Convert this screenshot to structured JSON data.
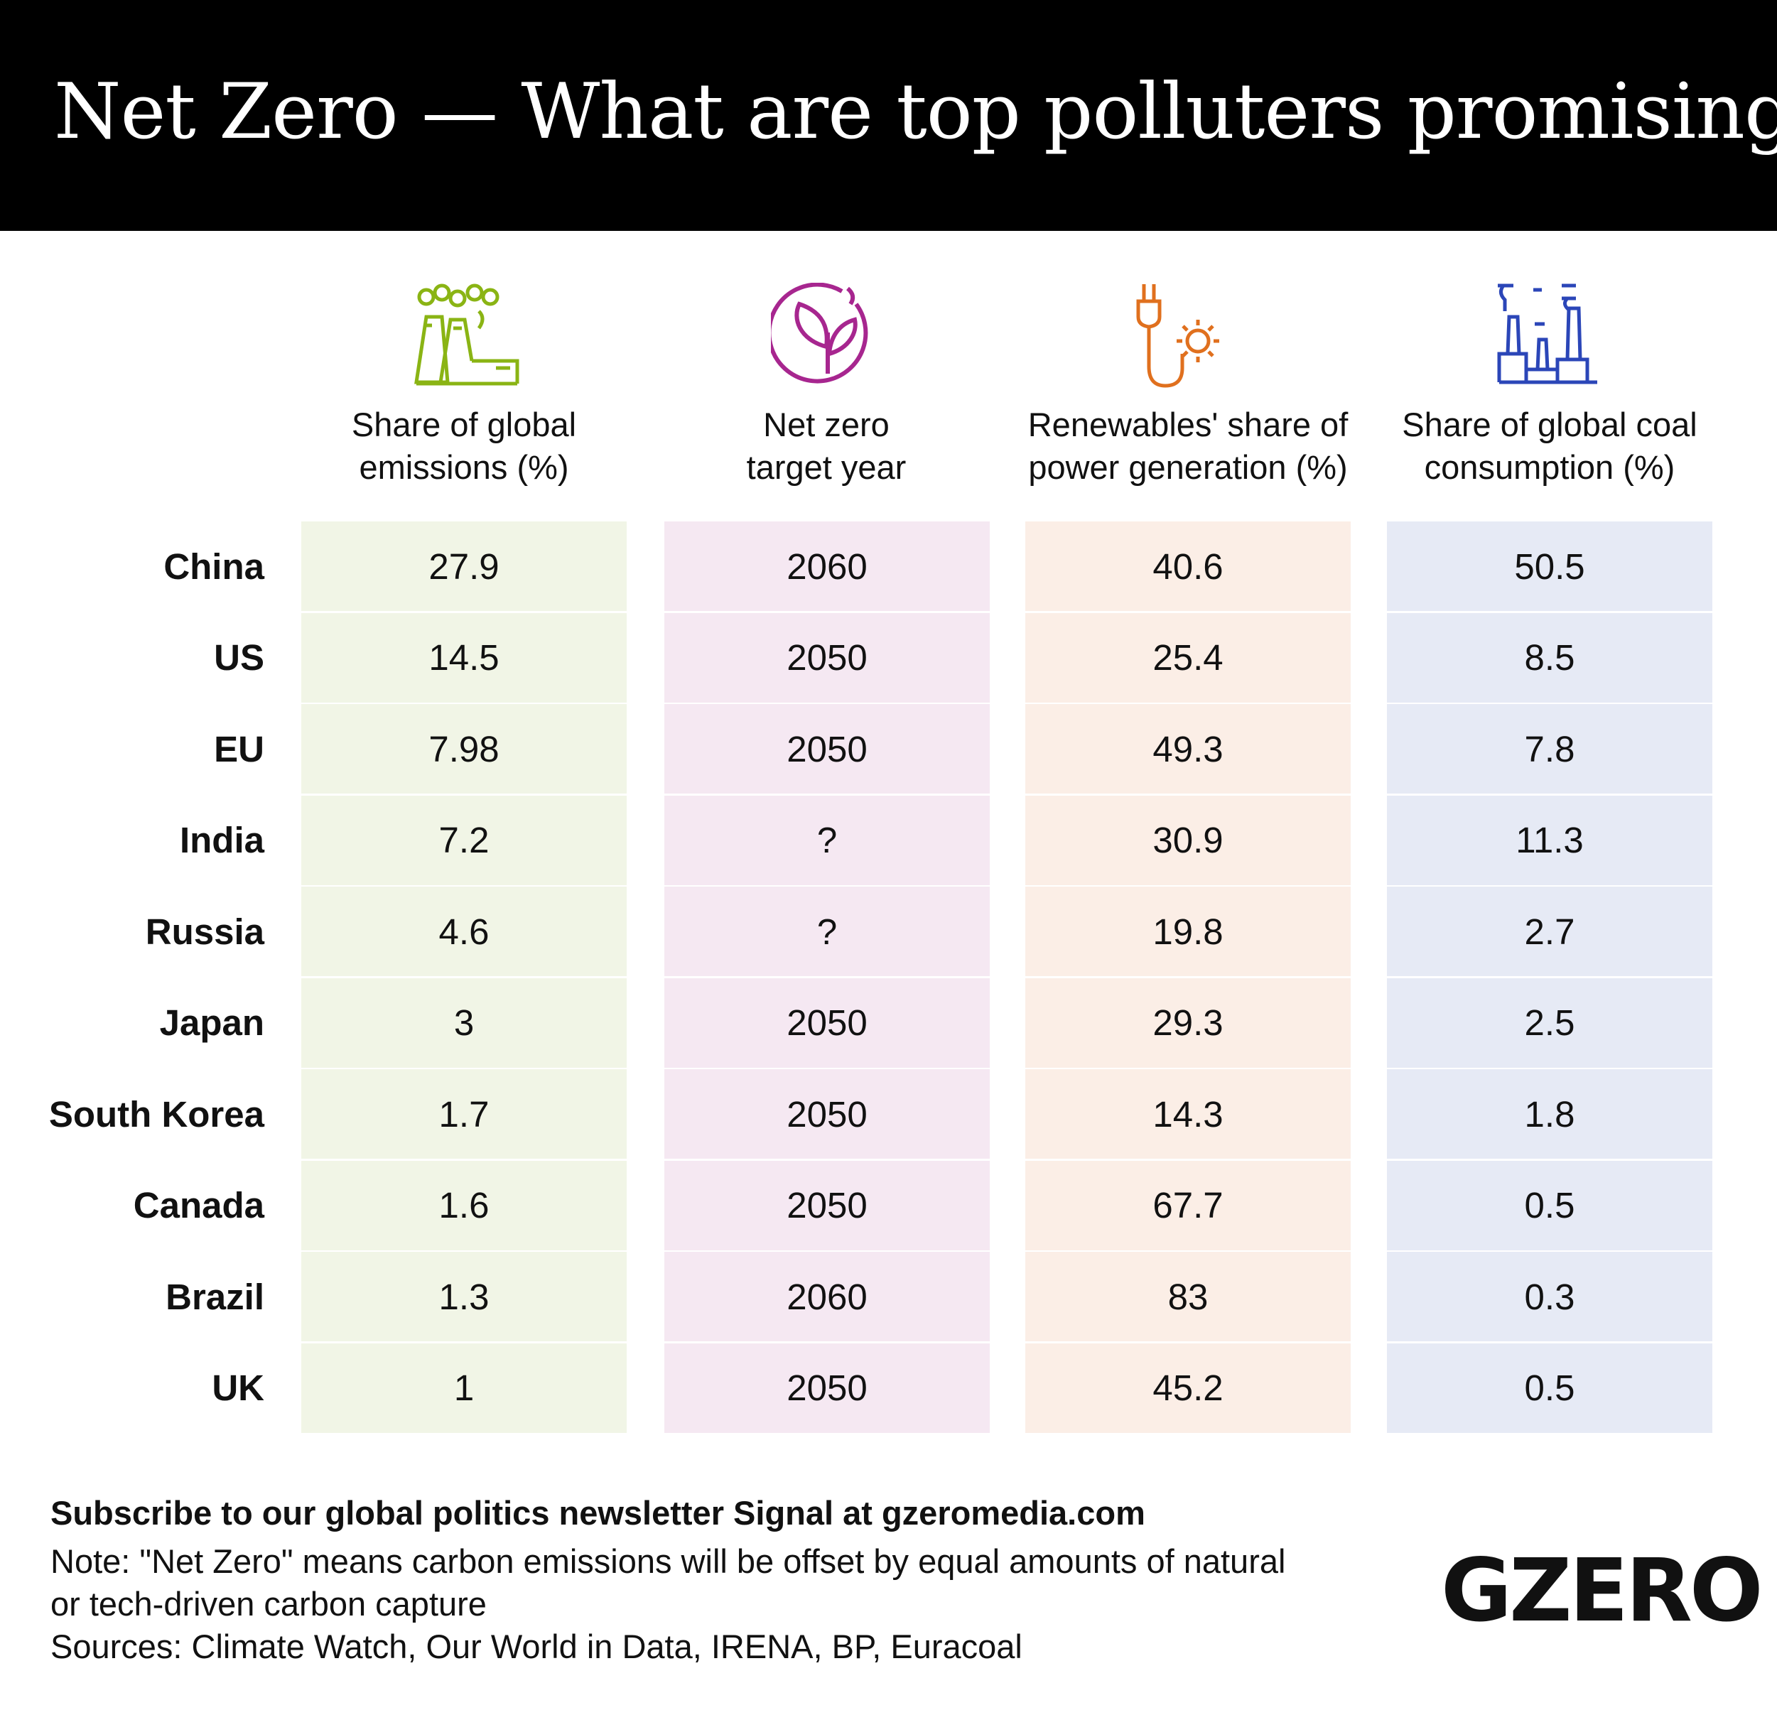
{
  "title": "Net Zero — What are top polluters promising?",
  "columns": [
    {
      "line1": "Share of global",
      "line2": "emissions (%)",
      "icon": "factory-smoke-icon",
      "color": "#8ab414",
      "bg": "#f1f5e6"
    },
    {
      "line1": "Net zero",
      "line2": "target year",
      "icon": "leaf-circle-icon",
      "color": "#a7268f",
      "bg": "#f5e8f2"
    },
    {
      "line1": "Renewables' share of",
      "line2": "power generation (%)",
      "icon": "plug-sun-icon",
      "color": "#e0701e",
      "bg": "#fbeee6"
    },
    {
      "line1": "Share of global coal",
      "line2": "consumption (%)",
      "icon": "power-plant-icon",
      "color": "#2b46b8",
      "bg": "#e6eaf5"
    }
  ],
  "rows": [
    {
      "country": "China",
      "values": [
        "27.9",
        "2060",
        "40.6",
        "50.5"
      ]
    },
    {
      "country": "US",
      "values": [
        "14.5",
        "2050",
        "25.4",
        "8.5"
      ]
    },
    {
      "country": "EU",
      "values": [
        "7.98",
        "2050",
        "49.3",
        "7.8"
      ]
    },
    {
      "country": "India",
      "values": [
        "7.2",
        "?",
        "30.9",
        "11.3"
      ]
    },
    {
      "country": "Russia",
      "values": [
        "4.6",
        "?",
        "19.8",
        "2.7"
      ]
    },
    {
      "country": "Japan",
      "values": [
        "3",
        "2050",
        "29.3",
        "2.5"
      ]
    },
    {
      "country": "South Korea",
      "values": [
        "1.7",
        "2050",
        "14.3",
        "1.8"
      ]
    },
    {
      "country": "Canada",
      "values": [
        "1.6",
        "2050",
        "67.7",
        "0.5"
      ]
    },
    {
      "country": "Brazil",
      "values": [
        "1.3",
        "2060",
        "83",
        "0.3"
      ]
    },
    {
      "country": "UK",
      "values": [
        "1",
        "2050",
        "45.2",
        "0.5"
      ]
    }
  ],
  "footer": {
    "subscribe": "Subscribe to our global politics newsletter Signal at gzeromedia.com",
    "note_line1": "Note: \"Net Zero\" means carbon emissions will be offset by equal amounts of natural",
    "note_line2": "or tech-driven carbon capture",
    "sources": "Sources: Climate Watch, Our World in Data, IRENA, BP, Euracoal"
  },
  "logo": "GZERO"
}
